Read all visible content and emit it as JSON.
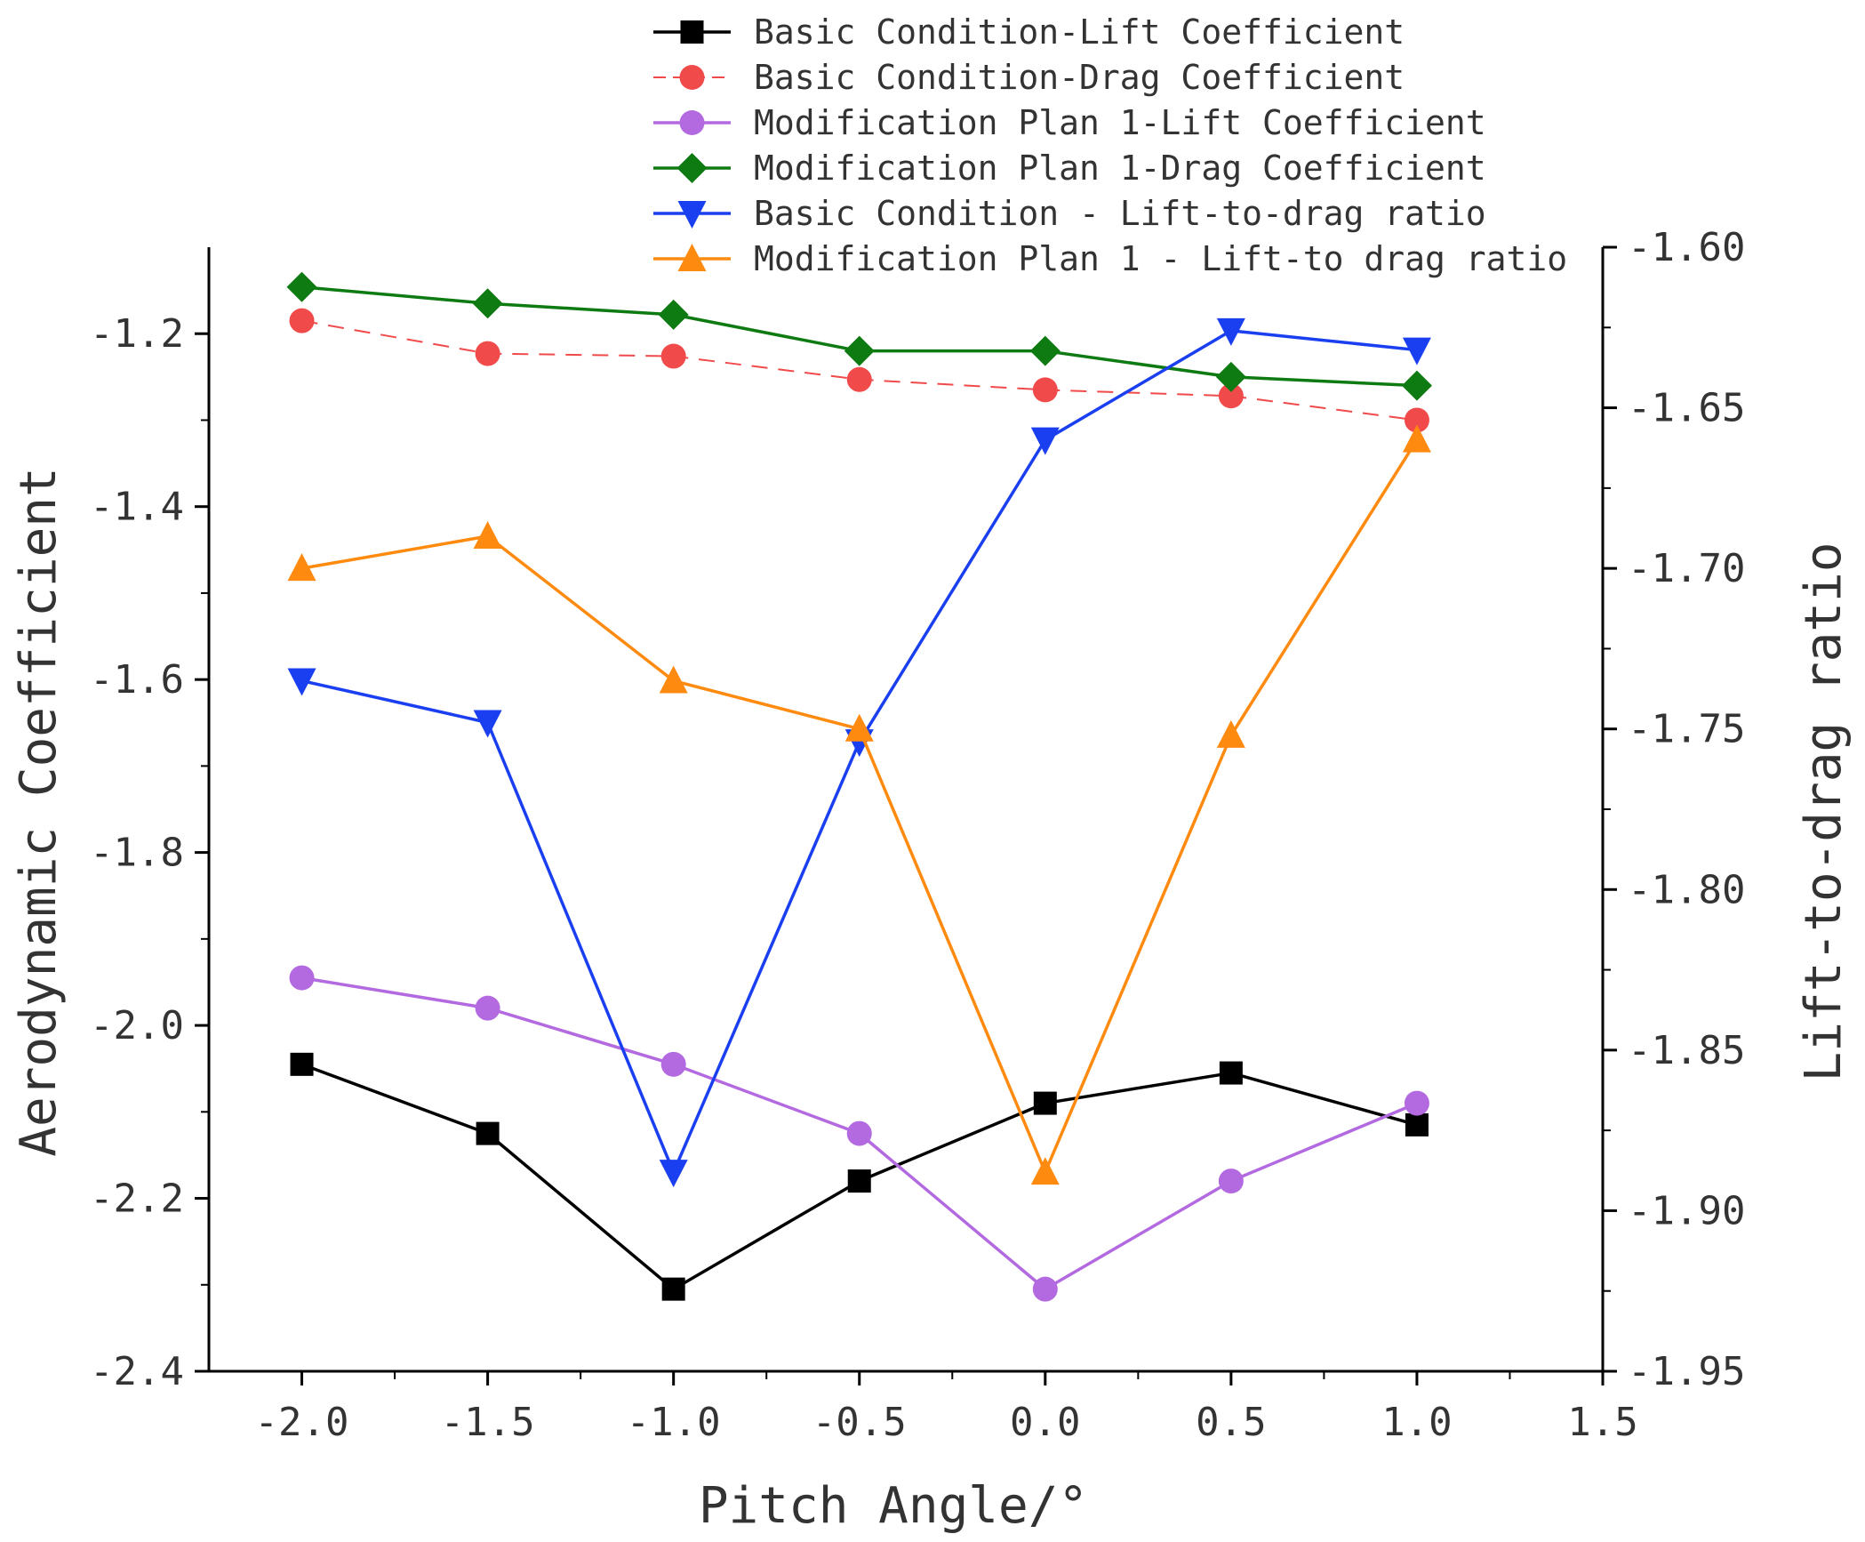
{
  "chart_data": {
    "type": "line",
    "title": "",
    "xlabel": "Pitch Angle/°",
    "ylabel": "Aerodynamic Coefficient",
    "y2label": "Lift-to-drag ratio",
    "xlim": [
      -2.25,
      1.5
    ],
    "ylim": [
      -2.4,
      -1.1
    ],
    "y2lim": [
      -1.95,
      -1.6
    ],
    "x_ticks": [
      -2.0,
      -1.5,
      -1.0,
      -0.5,
      0.0,
      0.5,
      1.0,
      1.5
    ],
    "x_tick_labels": [
      "-2.0",
      "-1.5",
      "-1.0",
      "-0.5",
      "0.0",
      "0.5",
      "1.0",
      "1.5"
    ],
    "y_ticks": [
      -1.2,
      -1.4,
      -1.6,
      -1.8,
      -2.0,
      -2.2,
      -2.4
    ],
    "y_tick_labels": [
      "-1.2",
      "-1.4",
      "-1.6",
      "-1.8",
      "-2.0",
      "-2.2",
      "-2.4"
    ],
    "y2_ticks": [
      -1.6,
      -1.65,
      -1.7,
      -1.75,
      -1.8,
      -1.85,
      -1.9,
      -1.95
    ],
    "y2_tick_labels": [
      "-1.60",
      "-1.65",
      "-1.70",
      "-1.75",
      "-1.80",
      "-1.85",
      "-1.90",
      "-1.95"
    ],
    "legend_position": "top",
    "series": [
      {
        "name": "Basic Condition-Lift Coefficient",
        "axis": "left",
        "color": "#000000",
        "marker": "square",
        "dash": false,
        "x": [
          -2.0,
          -1.5,
          -1.0,
          -0.5,
          0.0,
          0.5,
          1.0
        ],
        "values": [
          -2.045,
          -2.125,
          -2.305,
          -2.18,
          -2.09,
          -2.055,
          -2.115
        ]
      },
      {
        "name": "Basic Condition-Drag Coefficient",
        "axis": "left",
        "color": "#f04a4a",
        "marker": "circle",
        "dash": true,
        "x": [
          -2.0,
          -1.5,
          -1.0,
          -0.5,
          0.0,
          0.5,
          1.0
        ],
        "values": [
          -1.185,
          -1.223,
          -1.226,
          -1.253,
          -1.265,
          -1.272,
          -1.3
        ]
      },
      {
        "name": "Modification Plan 1-Lift Coefficient",
        "axis": "left",
        "color": "#b36ae0",
        "marker": "circle",
        "dash": false,
        "x": [
          -2.0,
          -1.5,
          -1.0,
          -0.5,
          0.0,
          0.5,
          1.0
        ],
        "values": [
          -1.945,
          -1.98,
          -2.045,
          -2.125,
          -2.305,
          -2.18,
          -2.09
        ]
      },
      {
        "name": "Modification Plan 1-Drag Coefficient",
        "axis": "left",
        "color": "#0e7a12",
        "marker": "diamond",
        "dash": false,
        "x": [
          -2.0,
          -1.5,
          -1.0,
          -0.5,
          0.0,
          0.5,
          1.0
        ],
        "values": [
          -1.146,
          -1.165,
          -1.178,
          -1.22,
          -1.22,
          -1.25,
          -1.26
        ]
      },
      {
        "name": "Basic Condition - Lift-to-drag ratio",
        "axis": "right",
        "color": "#1a3ff0",
        "marker": "triangle-down",
        "dash": false,
        "x": [
          -2.0,
          -1.5,
          -1.0,
          -0.5,
          0.0,
          0.5,
          1.0
        ],
        "values": [
          -1.735,
          -1.748,
          -1.888,
          -1.754,
          -1.66,
          -1.626,
          -1.632
        ]
      },
      {
        "name": "Modification Plan 1 - Lift-to drag ratio",
        "axis": "right",
        "color": "#ff8a10",
        "marker": "triangle-up",
        "dash": false,
        "x": [
          -2.0,
          -1.5,
          -1.0,
          -0.5,
          0.0,
          0.5,
          1.0
        ],
        "values": [
          -1.7,
          -1.69,
          -1.735,
          -1.75,
          -1.888,
          -1.752,
          -1.66
        ]
      }
    ]
  }
}
